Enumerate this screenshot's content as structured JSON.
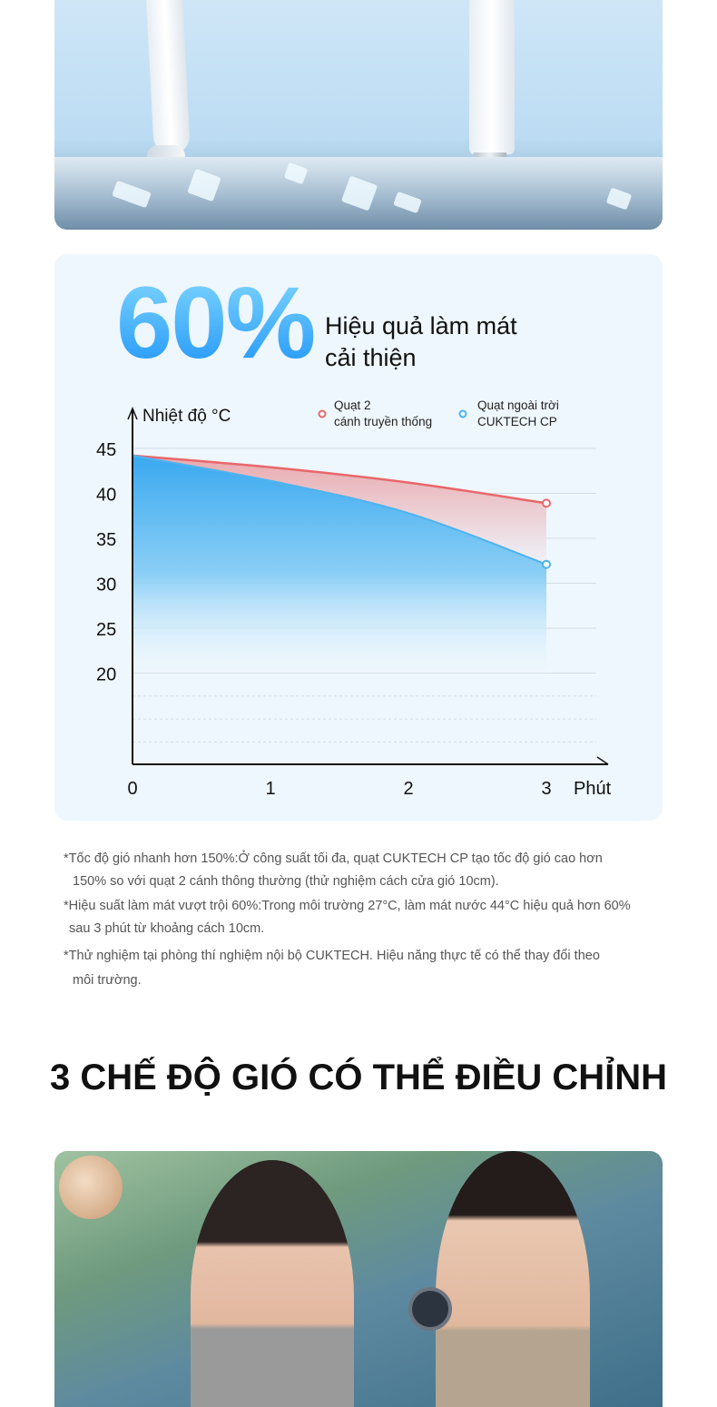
{
  "headline": {
    "value": "60%",
    "text_line1": "Hiệu quả làm mát",
    "text_line2": "cải thiện"
  },
  "chart_data": {
    "type": "line",
    "ylabel": "Nhiệt độ °C",
    "xlabel": "Phút",
    "x": [
      0,
      1,
      2,
      3
    ],
    "x_tick_labels": [
      "0",
      "1",
      "2",
      "3"
    ],
    "y_tick_labels": [
      "45",
      "40",
      "35",
      "30",
      "25",
      "20"
    ],
    "y_ticks": [
      45,
      40,
      35,
      30,
      25,
      20
    ],
    "ylim": [
      12.5,
      45
    ],
    "grid": true,
    "legend_position": "top-right",
    "series": [
      {
        "name_line1": "Quạt 2",
        "name_line2": "cánh truyền thống",
        "color": "#e8676a",
        "values": [
          44.2,
          42.9,
          41.2,
          38.9
        ]
      },
      {
        "name_line1": "Quạt ngoài trời",
        "name_line2": "CUKTECH CP",
        "color": "#4fb3ee",
        "values": [
          44.2,
          41.4,
          37.8,
          32.1
        ]
      }
    ]
  },
  "notes": [
    {
      "line1": "*Tốc độ gió nhanh hơn 150%:Ở công suất tối đa, quạt CUKTECH CP tạo tốc độ gió cao hơn",
      "line2": "150% so với quạt 2 cánh thông thường (thử nghiệm cách cửa gió 10cm)."
    },
    {
      "line1": "*Hiệu suất làm mát vượt trội 60%:Trong môi trường 27°C, làm mát nước 44°C hiệu quả hơn 60%",
      "line2": "sau 3 phút từ khoảng cách 10cm."
    },
    {
      "line1": "*Thử nghiệm tại phòng thí nghiệm nội bộ CUKTECH. Hiệu năng thực tế có thể thay đổi theo",
      "line2": "môi trường."
    }
  ],
  "section_title": "3 CHẾ ĐỘ GIÓ CÓ THỂ ĐIỀU CHỈNH"
}
